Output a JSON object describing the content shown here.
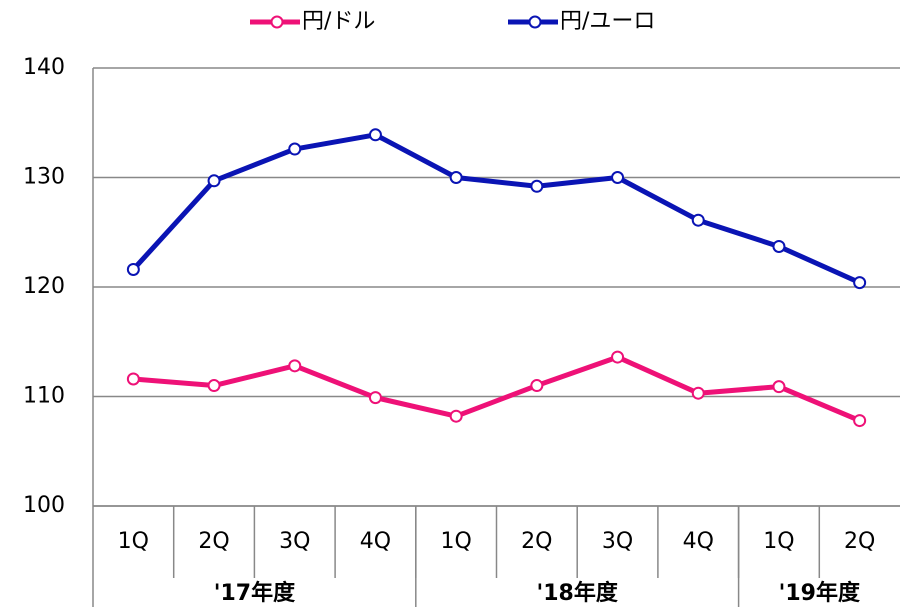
{
  "chart_data": {
    "type": "line",
    "categories": [
      "1Q",
      "2Q",
      "3Q",
      "4Q",
      "1Q",
      "2Q",
      "3Q",
      "4Q",
      "1Q",
      "2Q"
    ],
    "groups": [
      {
        "label": "'17年度",
        "span": 4
      },
      {
        "label": "'18年度",
        "span": 4
      },
      {
        "label": "'19年度",
        "span": 2
      }
    ],
    "series": [
      {
        "name": "円/ドル",
        "color": "#ee1177",
        "values": [
          111.6,
          111.0,
          112.8,
          109.9,
          108.2,
          111.0,
          113.6,
          110.3,
          110.9,
          107.8
        ]
      },
      {
        "name": "円/ユーロ",
        "color": "#0a14b4",
        "values": [
          121.6,
          129.7,
          132.6,
          133.9,
          130.0,
          129.2,
          130.0,
          126.1,
          123.7,
          120.4
        ]
      }
    ],
    "ylim": [
      100,
      140
    ],
    "yticks": [
      100,
      110,
      120,
      130,
      140
    ],
    "grid": true,
    "legend": "top"
  }
}
